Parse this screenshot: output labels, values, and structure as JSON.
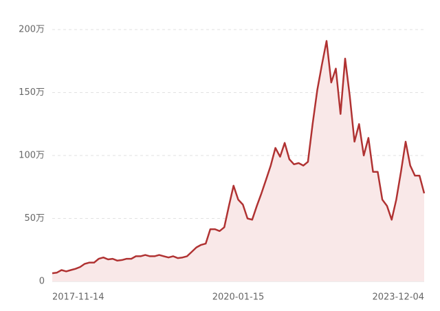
{
  "chart_data": {
    "type": "area",
    "categories": [
      "2017-11-14",
      null,
      null,
      null,
      null,
      null,
      null,
      null,
      null,
      null,
      null,
      null,
      null,
      null,
      null,
      null,
      null,
      null,
      null,
      null,
      null,
      null,
      null,
      null,
      null,
      null,
      null,
      null,
      null,
      null,
      null,
      null,
      null,
      null,
      null,
      null,
      null,
      null,
      null,
      null,
      "2020-01-15",
      null,
      null,
      null,
      null,
      null,
      null,
      null,
      null,
      null,
      null,
      null,
      null,
      null,
      null,
      null,
      null,
      null,
      null,
      null,
      null,
      null,
      null,
      null,
      null,
      null,
      null,
      null,
      null,
      null,
      null,
      null,
      null,
      null,
      null,
      null,
      null,
      null,
      null,
      null,
      "2023-12-04"
    ],
    "series": [
      {
        "color": "#b03232",
        "values": [
          6.5,
          7,
          9,
          8,
          9,
          10,
          11.5,
          14,
          15,
          15,
          18,
          19,
          17.5,
          18,
          16.5,
          17,
          18,
          18,
          20,
          20,
          21,
          20,
          20,
          21,
          20,
          19,
          20,
          18.5,
          19,
          20,
          23.5,
          27,
          29,
          30,
          41.5,
          41.5,
          40,
          43,
          60,
          76,
          65,
          61,
          50,
          49,
          60,
          70,
          81,
          92,
          106,
          99,
          110,
          97,
          93,
          94,
          92,
          95,
          125,
          152,
          172,
          191,
          158,
          169,
          133,
          177,
          147,
          111,
          125,
          100,
          114,
          87,
          87,
          65,
          60,
          49,
          65,
          87,
          111,
          92,
          84,
          84,
          70
        ]
      }
    ],
    "fill_color": "#f9e8e8",
    "ylim": [
      0,
      200
    ],
    "yticks": [
      0,
      {
        "value": 50,
        "label": "50万"
      },
      {
        "value": 100,
        "label": "100万"
      },
      {
        "value": 150,
        "label": "150万"
      },
      {
        "value": 200,
        "label": "200万"
      }
    ],
    "grid": true
  }
}
